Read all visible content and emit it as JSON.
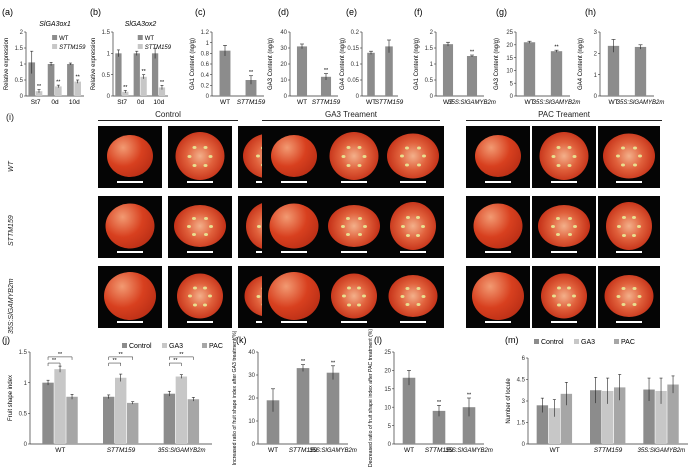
{
  "panel_i": {
    "letter": "(i)",
    "groups": [
      "Control",
      "GA3 Treament",
      "PAC Treament"
    ],
    "rows": [
      "WT",
      "STTM159",
      "35S:SlGAMYB2m"
    ]
  },
  "colors": {
    "wt": "#8c8c8c",
    "mutant": "#c7c7c7",
    "control": "#8c8c8c",
    "ga3": "#c7c7c7",
    "pac": "#a6a6a6",
    "bar": "#8c8c8c"
  },
  "chart_data": [
    {
      "id": "a",
      "letter": "(a)",
      "type": "bar",
      "title": "SlGA3ox1",
      "ylabel": "Relative expression",
      "ylim": [
        0,
        2
      ],
      "yticks": [
        0,
        0.5,
        1,
        1.5,
        2
      ],
      "categories": [
        "St7",
        "0d",
        "10d"
      ],
      "series": [
        {
          "name": "WT",
          "values": [
            1.05,
            1.0,
            1.0
          ],
          "errors": [
            0.35,
            0.05,
            0.03
          ]
        },
        {
          "name": "STTM159",
          "values": [
            0.15,
            0.3,
            0.45
          ],
          "errors": [
            0.05,
            0.04,
            0.05
          ]
        }
      ],
      "sig": [
        "**",
        "**",
        "**"
      ]
    },
    {
      "id": "b",
      "letter": "(b)",
      "type": "bar",
      "title": "SlGA3ox2",
      "ylabel": "Relative expression",
      "ylim": [
        0,
        1.5
      ],
      "yticks": [
        0,
        0.5,
        1,
        1.5
      ],
      "categories": [
        "St7",
        "0d",
        "10d"
      ],
      "series": [
        {
          "name": "WT",
          "values": [
            1.0,
            1.0,
            1.0
          ],
          "errors": [
            0.08,
            0.05,
            0.12
          ]
        },
        {
          "name": "STTM159",
          "values": [
            0.1,
            0.45,
            0.2
          ],
          "errors": [
            0.03,
            0.05,
            0.05
          ]
        }
      ],
      "sig": [
        "**",
        "**",
        "**"
      ]
    },
    {
      "id": "c",
      "letter": "(c)",
      "type": "bar",
      "ylabel": "GA1 Content (ng/g)",
      "ylim": [
        0,
        1.2
      ],
      "yticks": [
        0,
        0.2,
        0.4,
        0.6,
        0.8,
        1.0,
        1.2
      ],
      "categories": [
        "WT",
        "STTM159"
      ],
      "values": [
        0.85,
        0.3
      ],
      "errors": [
        0.1,
        0.08
      ],
      "sig": [
        "",
        "**"
      ]
    },
    {
      "id": "d",
      "letter": "(d)",
      "type": "bar",
      "ylabel": "GA3 Content (ng/g)",
      "ylim": [
        0,
        40
      ],
      "yticks": [
        0,
        10,
        20,
        30,
        40
      ],
      "categories": [
        "WT",
        "STTM159"
      ],
      "values": [
        31,
        12
      ],
      "errors": [
        1.5,
        2
      ],
      "sig": [
        "",
        "**"
      ]
    },
    {
      "id": "e",
      "letter": "(e)",
      "type": "bar",
      "ylabel": "GA4 Content (ng/g)",
      "ylim": [
        0,
        0.2
      ],
      "yticks": [
        0,
        0.05,
        0.1,
        0.15,
        0.2
      ],
      "categories": [
        "WT",
        "STTM159"
      ],
      "values": [
        0.135,
        0.155
      ],
      "errors": [
        0.005,
        0.02
      ],
      "sig": [
        "",
        ""
      ]
    },
    {
      "id": "f",
      "letter": "(f)",
      "type": "bar",
      "ylabel": "GA1 Content (ng/g)",
      "ylim": [
        0,
        2
      ],
      "yticks": [
        0,
        0.5,
        1,
        1.5,
        2
      ],
      "categories": [
        "WT",
        "35S:SlGAMYB2m"
      ],
      "values": [
        1.62,
        1.25
      ],
      "errors": [
        0.06,
        0.03
      ],
      "sig": [
        "",
        "**"
      ]
    },
    {
      "id": "g",
      "letter": "(g)",
      "type": "bar",
      "ylabel": "GA3 Content (ng/g)",
      "ylim": [
        0,
        25
      ],
      "yticks": [
        0,
        5,
        10,
        15,
        20,
        25
      ],
      "categories": [
        "WT",
        "35S:SlGAMYB2m"
      ],
      "values": [
        21,
        17.5
      ],
      "errors": [
        0.4,
        0.4
      ],
      "sig": [
        "",
        "**"
      ]
    },
    {
      "id": "h",
      "letter": "(h)",
      "type": "bar",
      "ylabel": "GA4 Content (ng/g)",
      "ylim": [
        0,
        3
      ],
      "yticks": [
        0,
        1,
        2,
        3
      ],
      "categories": [
        "WT",
        "35S:SlGAMYB2m"
      ],
      "values": [
        2.35,
        2.3
      ],
      "errors": [
        0.3,
        0.1
      ],
      "sig": [
        "",
        ""
      ]
    },
    {
      "id": "j",
      "letter": "(j)",
      "type": "bar",
      "ylabel": "Fruit shape index",
      "ylim": [
        0,
        1.5
      ],
      "yticks": [
        0,
        0.5,
        1,
        1.5
      ],
      "categories": [
        "WT",
        "STTM159",
        "35S:SlGAMYB2m"
      ],
      "series": [
        {
          "name": "Control",
          "values": [
            1.0,
            0.77,
            0.82
          ],
          "errors": [
            0.04,
            0.03,
            0.04
          ]
        },
        {
          "name": "GA3",
          "values": [
            1.22,
            1.08,
            1.1
          ],
          "errors": [
            0.05,
            0.06,
            0.03
          ]
        },
        {
          "name": "PAC",
          "values": [
            0.77,
            0.67,
            0.73
          ],
          "errors": [
            0.04,
            0.02,
            0.03
          ]
        }
      ],
      "sig_brackets": "**"
    },
    {
      "id": "k",
      "letter": "(k)",
      "type": "bar",
      "ylabel": "Increased ratio of fruit shape index after GA3 treatment(%)",
      "ylim": [
        0,
        40
      ],
      "yticks": [
        0,
        10,
        20,
        30,
        40
      ],
      "categories": [
        "WT",
        "STTM159",
        "35S:SlGAMYB2m"
      ],
      "values": [
        19,
        33,
        31
      ],
      "errors": [
        5,
        1.5,
        3
      ],
      "sig": [
        "",
        "**",
        "**"
      ]
    },
    {
      "id": "l",
      "letter": "(l)",
      "type": "bar",
      "ylabel": "Decreased ratio of fruit shape index after PAC treatment (%)",
      "ylim": [
        0,
        25
      ],
      "yticks": [
        0,
        5,
        10,
        15,
        20,
        25
      ],
      "categories": [
        "WT",
        "STTM159",
        "35S:SlGAMYB2m"
      ],
      "values": [
        18,
        9,
        10
      ],
      "errors": [
        2,
        1.5,
        2.5
      ],
      "sig": [
        "",
        "**",
        "**"
      ]
    },
    {
      "id": "m",
      "letter": "(m)",
      "type": "bar",
      "ylabel": "Number of locule",
      "ylim": [
        0,
        6
      ],
      "yticks": [
        0,
        1.5,
        3,
        4.5,
        6
      ],
      "categories": [
        "WT",
        "STTM159",
        "35S:SlGAMYB2m"
      ],
      "series": [
        {
          "name": "Control",
          "values": [
            2.7,
            3.75,
            3.8
          ],
          "errors": [
            0.5,
            0.9,
            0.8
          ]
        },
        {
          "name": "GA3",
          "values": [
            2.5,
            3.7,
            3.7
          ],
          "errors": [
            0.6,
            0.9,
            0.9
          ]
        },
        {
          "name": "PAC",
          "values": [
            3.5,
            3.95,
            4.15
          ],
          "errors": [
            0.8,
            0.9,
            0.6
          ]
        }
      ]
    }
  ]
}
